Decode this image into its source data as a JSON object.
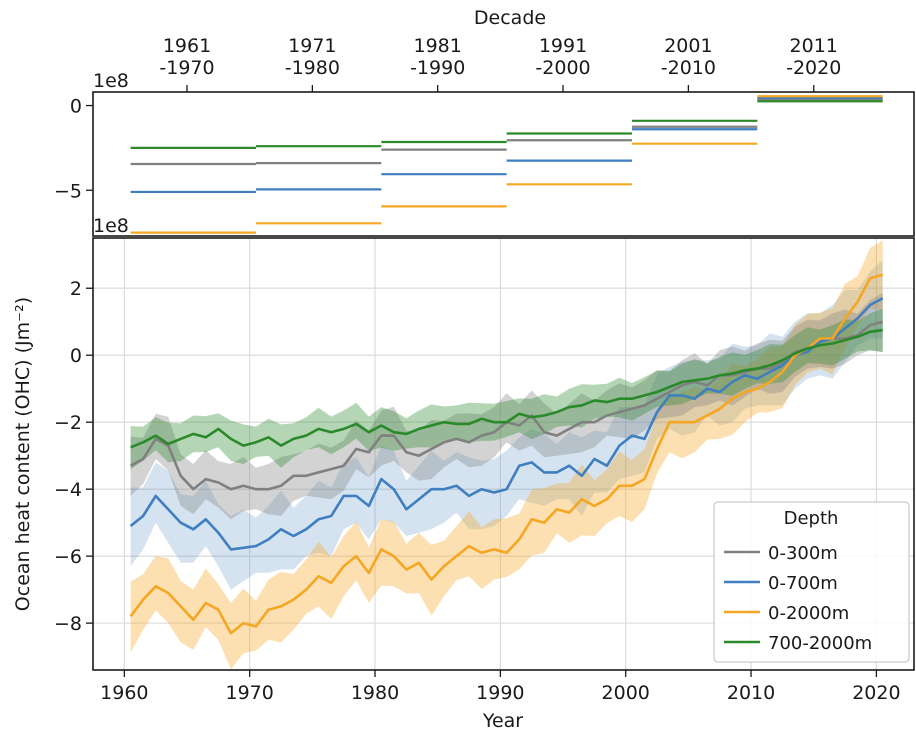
{
  "chart_data": [
    {
      "type": "line",
      "panel": "decadal-means",
      "xlabel_top": "Decade",
      "categories": [
        "1961\n-1970",
        "1971\n-1980",
        "1981\n-1990",
        "1991\n-2000",
        "2001\n-2010",
        "2011\n-2020"
      ],
      "tick_years": [
        1965,
        1975,
        1985,
        1995,
        2005,
        2015
      ],
      "decade_spans": [
        [
          1960.5,
          1970.5
        ],
        [
          1970.5,
          1980.5
        ],
        [
          1980.5,
          1990.5
        ],
        [
          1990.5,
          2000.5
        ],
        [
          2000.5,
          2010.5
        ],
        [
          2010.5,
          2020.5
        ]
      ],
      "offset_text": "1e8",
      "ylim": [
        -7.7,
        0.8
      ],
      "yticks": [
        0,
        -5
      ],
      "ytick_labels": [
        "0",
        "−5"
      ],
      "series": [
        {
          "key": "s300",
          "values": [
            -3.45,
            -3.4,
            -2.6,
            -2.05,
            -1.25,
            0.35
          ]
        },
        {
          "key": "s700",
          "values": [
            -5.1,
            -4.95,
            -4.05,
            -3.25,
            -1.4,
            0.45
          ]
        },
        {
          "key": "s2000",
          "values": [
            -7.5,
            -6.95,
            -5.95,
            -4.65,
            -2.25,
            0.55
          ]
        },
        {
          "key": "s7002000",
          "values": [
            -2.5,
            -2.4,
            -2.15,
            -1.65,
            -0.9,
            0.25
          ]
        }
      ]
    },
    {
      "type": "line",
      "panel": "annual-series",
      "title": "",
      "xlabel": "Year",
      "ylabel": "Ocean heat content (OHC) (Jm⁻²)",
      "offset_text": "1e8",
      "xlim": [
        1957.5,
        2023
      ],
      "ylim": [
        -9.4,
        3.5
      ],
      "xticks": [
        1960,
        1970,
        1980,
        1990,
        2000,
        2010,
        2020
      ],
      "xtick_labels": [
        "1960",
        "1970",
        "1980",
        "1990",
        "2000",
        "2010",
        "2020"
      ],
      "yticks": [
        2,
        0,
        -2,
        -4,
        -6,
        -8
      ],
      "ytick_labels": [
        "2",
        "0",
        "−2",
        "−4",
        "−6",
        "−8"
      ],
      "grid": true,
      "legend_title": "Depth",
      "legend_position": "lower-right",
      "x": [
        1960.5,
        1961.5,
        1962.5,
        1963.5,
        1964.5,
        1965.5,
        1966.5,
        1967.5,
        1968.5,
        1969.5,
        1970.5,
        1971.5,
        1972.5,
        1973.5,
        1974.5,
        1975.5,
        1976.5,
        1977.5,
        1978.5,
        1979.5,
        1980.5,
        1981.5,
        1982.5,
        1983.5,
        1984.5,
        1985.5,
        1986.5,
        1987.5,
        1988.5,
        1989.5,
        1990.5,
        1991.5,
        1992.5,
        1993.5,
        1994.5,
        1995.5,
        1996.5,
        1997.5,
        1998.5,
        1999.5,
        2000.5,
        2001.5,
        2002.5,
        2003.5,
        2004.5,
        2005.5,
        2006.5,
        2007.5,
        2008.5,
        2009.5,
        2010.5,
        2011.5,
        2012.5,
        2013.5,
        2014.5,
        2015.5,
        2016.5,
        2017.5,
        2018.5,
        2019.5,
        2020.5
      ],
      "series": [
        {
          "key": "s300",
          "name": "0-300m",
          "color": "#808080",
          "band": 0.75,
          "values": [
            -3.3,
            -3.1,
            -2.5,
            -2.7,
            -3.6,
            -4.0,
            -3.7,
            -3.8,
            -4.0,
            -3.9,
            -4.0,
            -4.0,
            -3.9,
            -3.6,
            -3.6,
            -3.5,
            -3.4,
            -3.3,
            -2.8,
            -2.9,
            -2.4,
            -2.4,
            -2.9,
            -3.0,
            -2.8,
            -2.6,
            -2.5,
            -2.6,
            -2.4,
            -2.3,
            -2.0,
            -2.1,
            -1.8,
            -2.3,
            -2.4,
            -2.2,
            -2.0,
            -2.0,
            -1.8,
            -1.7,
            -1.6,
            -1.5,
            -1.3,
            -1.1,
            -0.9,
            -0.8,
            -0.9,
            -0.6,
            -0.6,
            -0.5,
            -0.4,
            -0.4,
            -0.2,
            0.1,
            0.2,
            0.4,
            0.5,
            0.5,
            0.6,
            0.9,
            1.0
          ]
        },
        {
          "key": "s700",
          "name": "0-700m",
          "color": "#3f7fbf",
          "band": 1.0,
          "values": [
            -5.1,
            -4.8,
            -4.2,
            -4.6,
            -5.0,
            -5.2,
            -4.9,
            -5.3,
            -5.8,
            -5.75,
            -5.7,
            -5.5,
            -5.2,
            -5.4,
            -5.2,
            -4.9,
            -4.8,
            -4.2,
            -4.2,
            -4.5,
            -3.7,
            -4.0,
            -4.6,
            -4.3,
            -4.0,
            -4.0,
            -3.9,
            -4.2,
            -4.0,
            -4.1,
            -4.0,
            -3.3,
            -3.2,
            -3.5,
            -3.5,
            -3.3,
            -3.6,
            -3.1,
            -3.3,
            -2.7,
            -2.4,
            -2.5,
            -1.7,
            -1.2,
            -1.2,
            -1.3,
            -1.0,
            -1.1,
            -0.8,
            -0.6,
            -0.7,
            -0.5,
            -0.3,
            0.0,
            0.1,
            0.4,
            0.5,
            0.8,
            1.1,
            1.5,
            1.7
          ]
        },
        {
          "key": "s2000",
          "name": "0-2000m",
          "color": "#f5a623",
          "band": 0.9,
          "values": [
            -7.8,
            -7.3,
            -6.9,
            -7.1,
            -7.5,
            -7.9,
            -7.4,
            -7.6,
            -8.3,
            -8.0,
            -8.1,
            -7.6,
            -7.5,
            -7.3,
            -7.0,
            -6.6,
            -6.8,
            -6.3,
            -6.0,
            -6.5,
            -5.8,
            -6.0,
            -6.4,
            -6.2,
            -6.7,
            -6.3,
            -6.0,
            -5.7,
            -5.9,
            -5.8,
            -5.9,
            -5.5,
            -4.9,
            -5.0,
            -4.6,
            -4.7,
            -4.3,
            -4.5,
            -4.3,
            -3.9,
            -3.9,
            -3.7,
            -2.8,
            -2.0,
            -2.0,
            -2.0,
            -1.8,
            -1.6,
            -1.3,
            -1.1,
            -1.0,
            -0.8,
            -0.5,
            0.0,
            0.2,
            0.5,
            0.5,
            1.1,
            1.6,
            2.3,
            2.4
          ]
        },
        {
          "key": "s7002000",
          "name": "700-2000m",
          "color": "#2a8a2a",
          "band": 0.55,
          "values": [
            -2.75,
            -2.6,
            -2.4,
            -2.65,
            -2.5,
            -2.35,
            -2.45,
            -2.2,
            -2.5,
            -2.7,
            -2.6,
            -2.45,
            -2.7,
            -2.5,
            -2.4,
            -2.2,
            -2.3,
            -2.2,
            -2.05,
            -2.3,
            -2.1,
            -2.3,
            -2.35,
            -2.2,
            -2.1,
            -2.0,
            -2.05,
            -2.05,
            -1.9,
            -2.0,
            -2.0,
            -1.75,
            -1.85,
            -1.8,
            -1.7,
            -1.55,
            -1.5,
            -1.35,
            -1.4,
            -1.3,
            -1.3,
            -1.2,
            -1.1,
            -0.95,
            -0.8,
            -0.75,
            -0.7,
            -0.6,
            -0.55,
            -0.45,
            -0.4,
            -0.3,
            -0.15,
            0.05,
            0.2,
            0.3,
            0.35,
            0.45,
            0.55,
            0.7,
            0.75
          ]
        }
      ]
    }
  ]
}
